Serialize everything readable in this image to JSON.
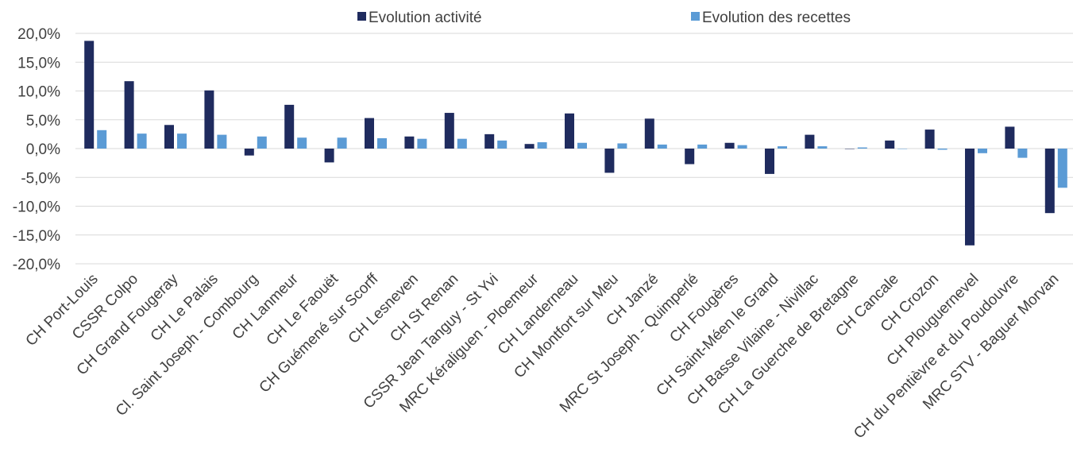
{
  "chart_data": {
    "type": "bar",
    "title": "",
    "xlabel": "",
    "ylabel": "",
    "ylim": [
      -0.2,
      0.2
    ],
    "y_ticks": [
      0.2,
      0.15,
      0.1,
      0.05,
      0.0,
      -0.05,
      -0.1,
      -0.15,
      -0.2
    ],
    "y_tick_labels": [
      "20,0%",
      "15,0%",
      "10,0%",
      "5,0%",
      "0,0%",
      "-5,0%",
      "-10,0%",
      "-15,0%",
      "-20,0%"
    ],
    "grid": true,
    "legend_position": "top",
    "categories": [
      "CH Port-Louis",
      "CSSR Colpo",
      "CH Grand Fougeray",
      "CH Le Palais",
      "Cl. Saint Joseph - Combourg",
      "CH Lanmeur",
      "CH Le Faouët",
      "CH Guémené sur Scorff",
      "CH Lesneven",
      "CH St Renan",
      "CSSR Jean Tanguy - St Yvi",
      "MRC Kéraliguen - Ploemeur",
      "CH Landerneau",
      "CH Montfort sur Meu",
      "CH Janzé",
      "MRC St Joseph - Quimperlé",
      "CH Fougères",
      "CH Saint-Méen le Grand",
      "CH Basse Vilaine - Nivillac",
      "CH La Guerche de Bretagne",
      "CH Cancale",
      "CH Crozon",
      "CH Plouguernevel",
      "CH du Pentièvre et du Poudouvre",
      "MRC STV - Baguer Morvan"
    ],
    "series": [
      {
        "name": "Evolution activité",
        "color": "#1f2b5e",
        "values": [
          0.187,
          0.117,
          0.041,
          0.101,
          -0.012,
          0.076,
          -0.024,
          0.053,
          0.021,
          0.062,
          0.025,
          0.008,
          0.061,
          -0.042,
          0.052,
          -0.027,
          0.01,
          -0.044,
          0.024,
          0.0,
          0.014,
          0.033,
          -0.168,
          0.038,
          -0.112
        ]
      },
      {
        "name": "Evolution des recettes",
        "color": "#5b9bd5",
        "values": [
          0.032,
          0.026,
          0.026,
          0.024,
          0.021,
          0.019,
          0.019,
          0.018,
          0.017,
          0.017,
          0.014,
          0.011,
          0.01,
          0.009,
          0.007,
          0.007,
          0.006,
          0.004,
          0.004,
          0.002,
          0.0,
          -0.002,
          -0.008,
          -0.016,
          -0.068
        ]
      }
    ]
  }
}
